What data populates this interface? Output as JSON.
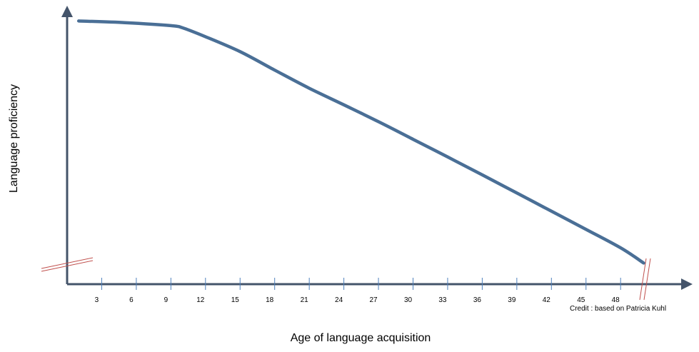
{
  "chart_data": {
    "type": "line",
    "xlabel": "Age of language acquisition",
    "ylabel": "Language proficiency",
    "x_ticks": [
      3,
      6,
      9,
      12,
      15,
      18,
      21,
      24,
      27,
      30,
      33,
      36,
      39,
      42,
      45,
      48
    ],
    "x_tick_labels": [
      "3",
      "6",
      "9",
      "12",
      "15",
      "18",
      "21",
      "24",
      "27",
      "30",
      "33",
      "36",
      "39",
      "42",
      "45",
      "48"
    ],
    "xlim": [
      0,
      53.5
    ],
    "ylim": [
      0,
      100
    ],
    "y_tick_labels": [],
    "axis_breaks": [
      "x-axis end",
      "y-axis bottom"
    ],
    "grid": false,
    "series": [
      {
        "x": [
          1,
          5,
          9,
          10,
          12,
          15,
          18,
          21,
          24,
          27,
          30,
          33,
          36,
          39,
          42,
          45,
          48,
          50
        ],
        "y": [
          97,
          96.4,
          95.3,
          94.5,
          91.2,
          85.7,
          78.9,
          72.2,
          66.1,
          59.9,
          53.4,
          46.9,
          40.3,
          33.6,
          26.9,
          20.2,
          13.4,
          7.8
        ]
      }
    ],
    "annotation": "Credit : based on  Patricia Kuhl",
    "colors": {
      "line": "#4a6f96",
      "axis": "#44546a",
      "tick": "#4f81bd",
      "break": "#c0504d"
    }
  }
}
